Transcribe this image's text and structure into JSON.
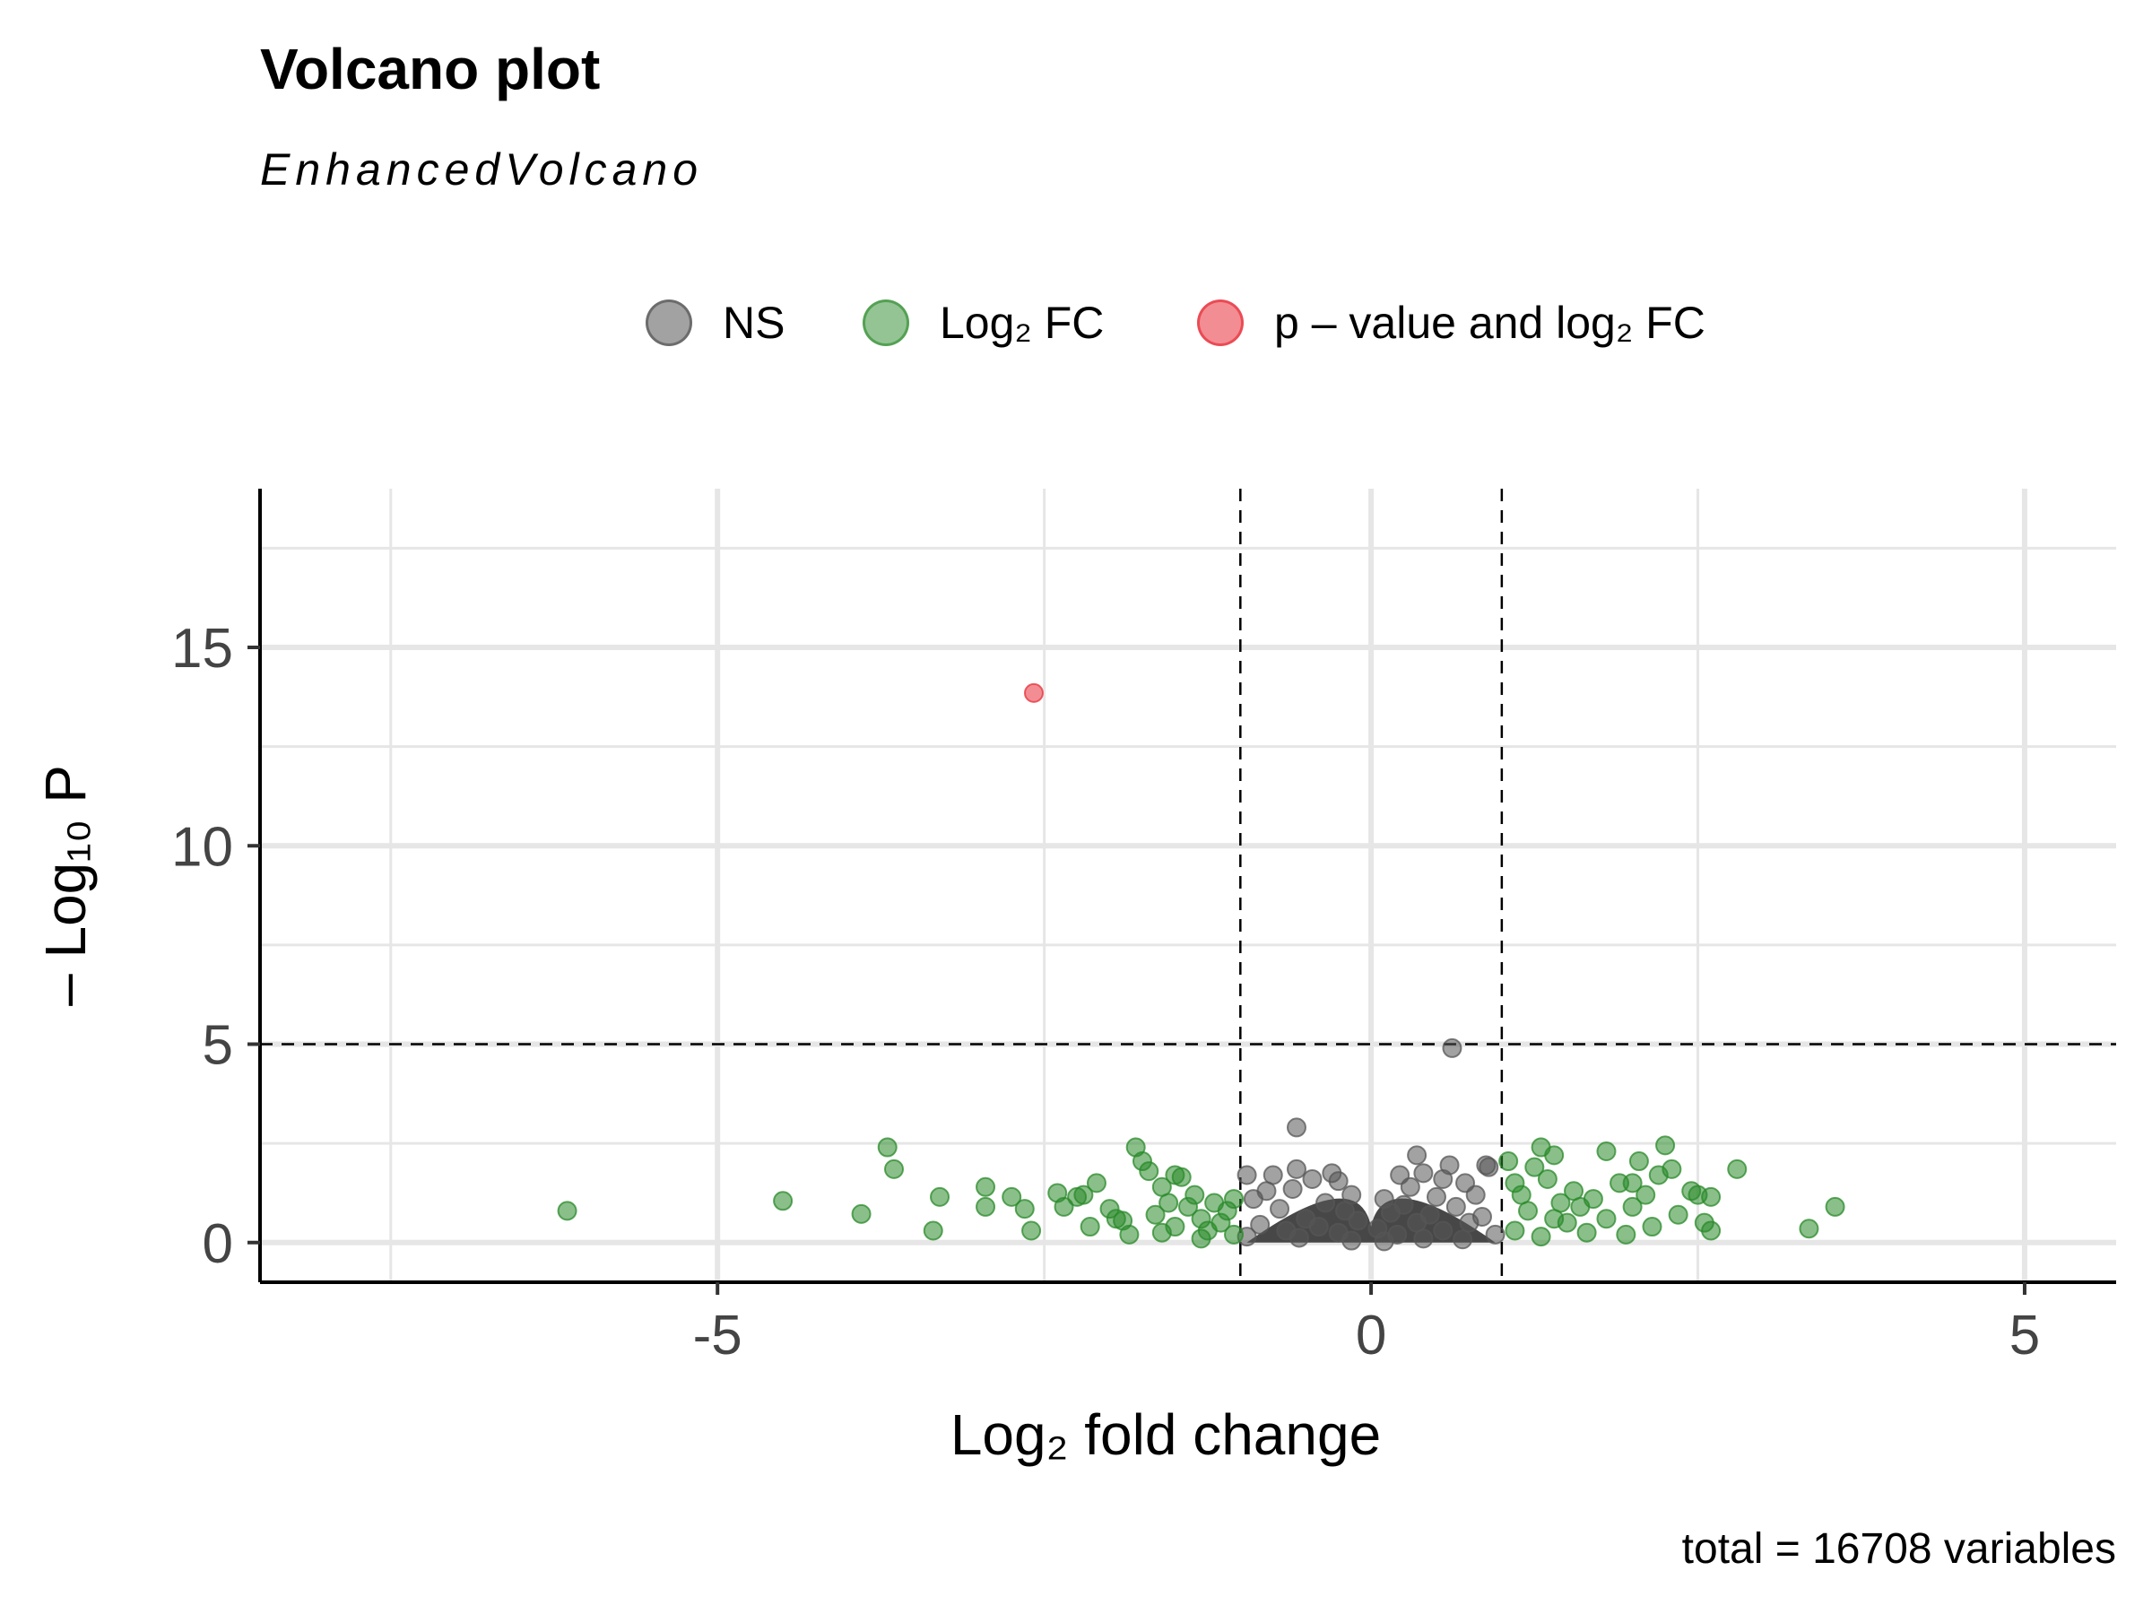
{
  "title": "Volcano plot",
  "subtitle": "EnhancedVolcano",
  "caption": "total = 16708 variables",
  "legend": [
    {
      "label": "NS",
      "color": "#555555"
    },
    {
      "label": "Log₂ FC",
      "color": "#2a8a2a"
    },
    {
      "label": "p – value and log₂ FC",
      "color": "#e8303a"
    }
  ],
  "chart_data": {
    "type": "scatter",
    "title": "Volcano plot",
    "subtitle": "EnhancedVolcano",
    "xlabel": "Log₂ fold change",
    "ylabel": "– Log₁₀ P",
    "xlim": [
      -8.5,
      5.7
    ],
    "ylim": [
      -1,
      19
    ],
    "xticks": [
      -5,
      0,
      5
    ],
    "xtick_labels": [
      "-5",
      "0",
      "5"
    ],
    "yticks": [
      0,
      5,
      10,
      15
    ],
    "ytick_labels": [
      "0",
      "5",
      "10",
      "15"
    ],
    "grid": true,
    "legend_position": "top",
    "thresholds": {
      "log2fc": [
        -1,
        1
      ],
      "neg_log10_p": 5
    },
    "series": [
      {
        "name": "p – value and log₂ FC",
        "color": "#e8303a",
        "points": [
          [
            -2.58,
            13.85
          ]
        ]
      },
      {
        "name": "NS",
        "color": "#555555",
        "points": [
          [
            0.62,
            4.9
          ],
          [
            -0.57,
            2.9
          ],
          [
            0.35,
            2.2
          ],
          [
            0.6,
            1.95
          ],
          [
            0.9,
            1.9
          ],
          [
            0.88,
            1.95
          ],
          [
            -0.95,
            1.7
          ],
          [
            -0.75,
            1.7
          ],
          [
            -0.57,
            1.85
          ],
          [
            -0.3,
            1.75
          ],
          [
            -0.45,
            1.6
          ],
          [
            -0.25,
            1.55
          ],
          [
            0.22,
            1.7
          ],
          [
            0.4,
            1.75
          ],
          [
            0.55,
            1.6
          ],
          [
            0.72,
            1.5
          ],
          [
            0.3,
            1.4
          ],
          [
            -0.8,
            1.3
          ],
          [
            -0.6,
            1.35
          ],
          [
            -0.15,
            1.2
          ],
          [
            0.1,
            1.1
          ],
          [
            0.5,
            1.15
          ],
          [
            0.8,
            1.2
          ],
          [
            -0.9,
            1.1
          ],
          [
            -0.35,
            1.0
          ],
          [
            0.25,
            0.95
          ],
          [
            0.65,
            0.9
          ],
          [
            -0.7,
            0.85
          ],
          [
            -0.2,
            0.8
          ],
          [
            0.15,
            0.75
          ],
          [
            0.45,
            0.7
          ],
          [
            0.85,
            0.65
          ],
          [
            -0.5,
            0.6
          ],
          [
            -0.1,
            0.55
          ],
          [
            0.35,
            0.5
          ],
          [
            0.75,
            0.5
          ],
          [
            -0.85,
            0.45
          ],
          [
            -0.4,
            0.4
          ],
          [
            0.05,
            0.35
          ],
          [
            0.55,
            0.3
          ],
          [
            -0.65,
            0.3
          ],
          [
            -0.25,
            0.25
          ],
          [
            0.2,
            0.2
          ],
          [
            0.95,
            0.2
          ],
          [
            -0.95,
            0.15
          ],
          [
            -0.55,
            0.12
          ],
          [
            0.4,
            0.1
          ],
          [
            0.7,
            0.08
          ],
          [
            -0.15,
            0.05
          ],
          [
            0.1,
            0.03
          ]
        ]
      },
      {
        "name": "Log₂ FC",
        "color": "#2a8a2a",
        "points": [
          [
            -6.15,
            0.8
          ],
          [
            -4.5,
            1.05
          ],
          [
            -3.9,
            0.72
          ],
          [
            -3.7,
            2.4
          ],
          [
            -3.65,
            1.85
          ],
          [
            -3.35,
            0.3
          ],
          [
            -3.3,
            1.15
          ],
          [
            -2.95,
            1.4
          ],
          [
            -2.95,
            0.9
          ],
          [
            -2.75,
            1.15
          ],
          [
            -2.65,
            0.85
          ],
          [
            -2.6,
            0.3
          ],
          [
            -2.4,
            1.25
          ],
          [
            -2.35,
            0.9
          ],
          [
            -2.25,
            1.15
          ],
          [
            -2.2,
            1.2
          ],
          [
            -2.15,
            0.4
          ],
          [
            -2.1,
            1.5
          ],
          [
            -2.0,
            0.85
          ],
          [
            -1.95,
            0.6
          ],
          [
            -1.85,
            0.2
          ],
          [
            -1.8,
            2.4
          ],
          [
            -1.75,
            2.05
          ],
          [
            -1.7,
            1.8
          ],
          [
            -1.65,
            0.7
          ],
          [
            -1.6,
            1.4
          ],
          [
            -1.55,
            1.0
          ],
          [
            -1.5,
            0.4
          ],
          [
            -1.5,
            1.7
          ],
          [
            -1.45,
            1.65
          ],
          [
            -1.4,
            0.9
          ],
          [
            -1.35,
            1.2
          ],
          [
            -1.3,
            0.6
          ],
          [
            -1.25,
            0.3
          ],
          [
            -1.2,
            1.0
          ],
          [
            -1.15,
            0.5
          ],
          [
            -1.1,
            0.8
          ],
          [
            -1.05,
            1.1
          ],
          [
            -1.05,
            0.2
          ],
          [
            -1.9,
            0.55
          ],
          [
            -1.6,
            0.25
          ],
          [
            -1.3,
            0.1
          ],
          [
            1.05,
            2.05
          ],
          [
            1.1,
            1.5
          ],
          [
            1.15,
            1.2
          ],
          [
            1.2,
            0.8
          ],
          [
            1.25,
            1.9
          ],
          [
            1.3,
            2.4
          ],
          [
            1.35,
            1.6
          ],
          [
            1.4,
            2.2
          ],
          [
            1.45,
            1.0
          ],
          [
            1.5,
            0.5
          ],
          [
            1.55,
            1.3
          ],
          [
            1.6,
            0.9
          ],
          [
            1.7,
            1.1
          ],
          [
            1.8,
            0.6
          ],
          [
            1.8,
            2.3
          ],
          [
            1.9,
            1.5
          ],
          [
            2.0,
            0.9
          ],
          [
            2.0,
            1.5
          ],
          [
            2.05,
            2.05
          ],
          [
            2.1,
            1.2
          ],
          [
            2.15,
            0.4
          ],
          [
            2.2,
            1.7
          ],
          [
            2.25,
            2.45
          ],
          [
            2.3,
            1.85
          ],
          [
            2.35,
            0.7
          ],
          [
            2.45,
            1.3
          ],
          [
            2.5,
            1.2
          ],
          [
            2.55,
            0.5
          ],
          [
            2.6,
            0.3
          ],
          [
            2.6,
            1.15
          ],
          [
            2.8,
            1.85
          ],
          [
            3.35,
            0.35
          ],
          [
            3.55,
            0.9
          ],
          [
            1.1,
            0.3
          ],
          [
            1.3,
            0.15
          ],
          [
            1.65,
            0.25
          ],
          [
            1.95,
            0.2
          ],
          [
            1.4,
            0.6
          ]
        ]
      }
    ]
  }
}
